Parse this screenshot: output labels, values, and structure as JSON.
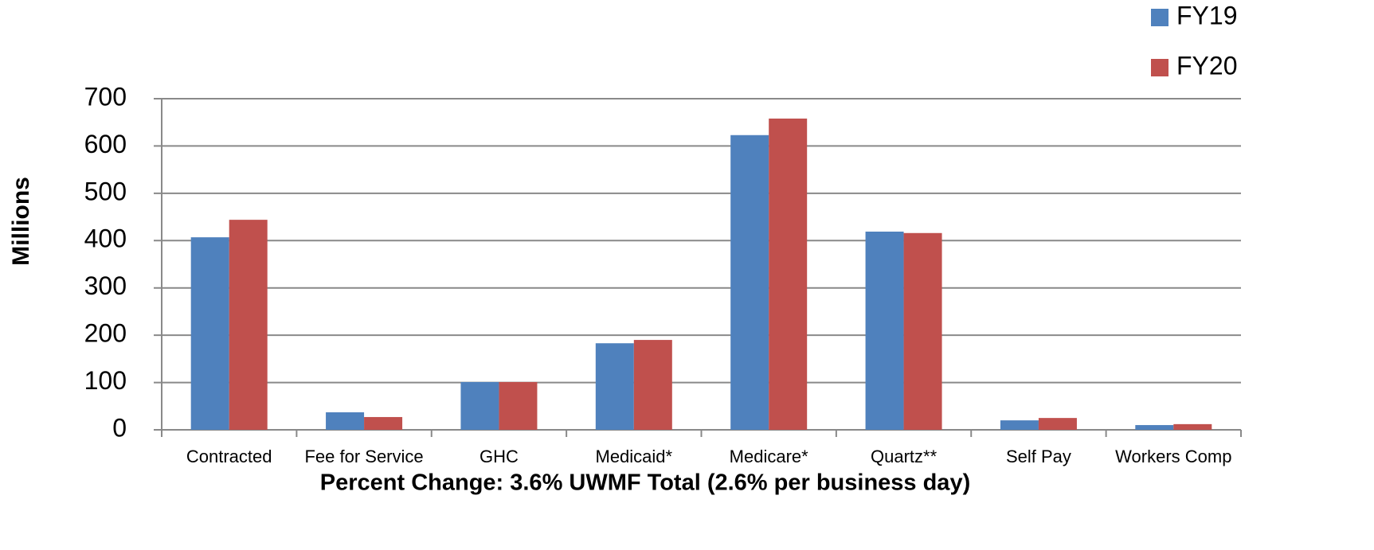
{
  "chart_data": {
    "type": "bar",
    "x_label": "Percent Change: 3.6% UWMF Total (2.6% per business day)",
    "y_label": "Millions",
    "categories": [
      "Contracted",
      "Fee for Service",
      "GHC",
      "Medicaid*",
      "Medicare*",
      "Quartz**",
      "Self Pay",
      "Workers Comp"
    ],
    "series": [
      {
        "name": "FY19",
        "color": "#4f81bd",
        "values": [
          407,
          37,
          101,
          183,
          623,
          419,
          20,
          10
        ]
      },
      {
        "name": "FY20",
        "color": "#c0504d",
        "values": [
          444,
          27,
          101,
          190,
          658,
          416,
          25,
          12
        ]
      }
    ],
    "ylim": [
      0,
      700
    ],
    "yticks": [
      0,
      100,
      200,
      300,
      400,
      500,
      600,
      700
    ],
    "grid": true,
    "legend": "top-right"
  }
}
